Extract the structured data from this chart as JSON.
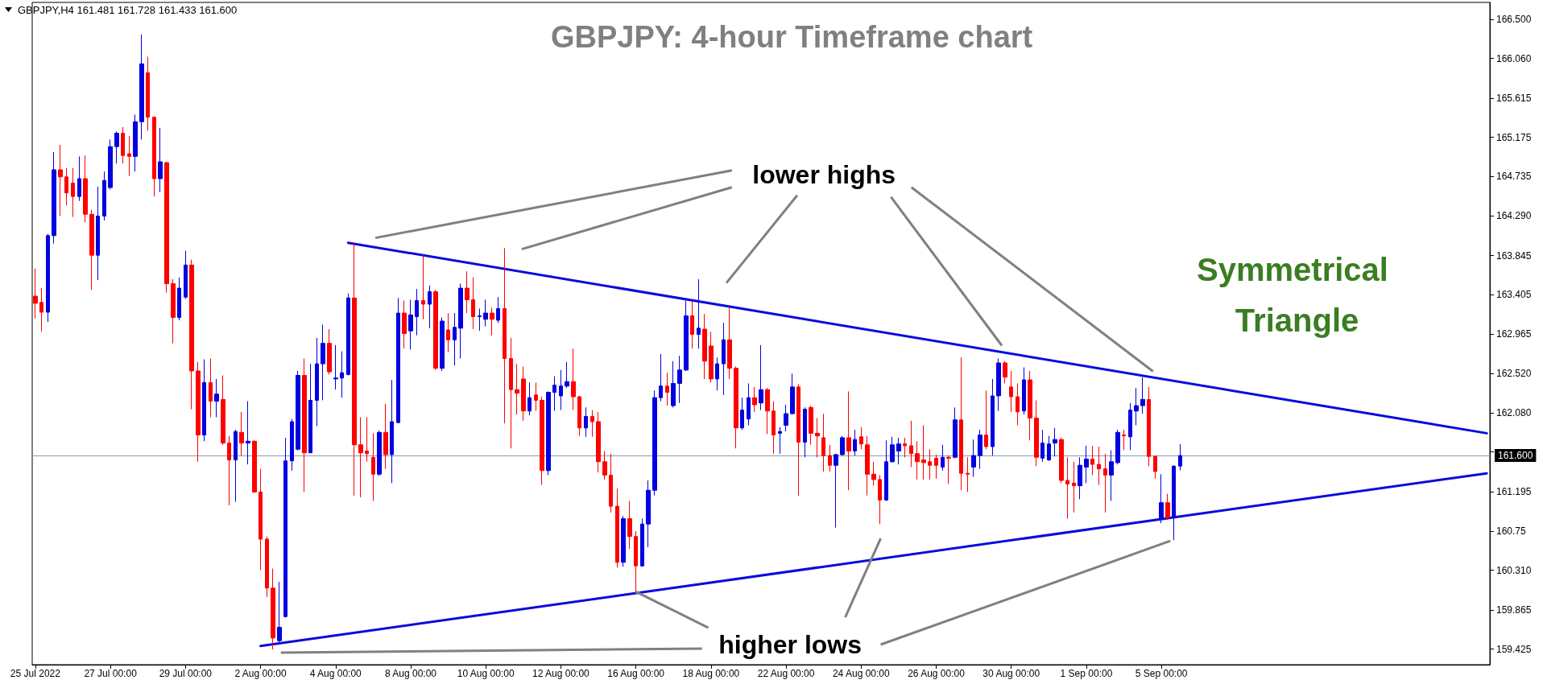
{
  "chart_data": {
    "type": "candlestick",
    "title": "GBPJPY: 4-hour Timeframe chart",
    "annotations": [
      "GBPJPY,H4 161.481 161.728 161.433 161.600",
      "lower highs",
      {
        "text": "higher lows",
        "x": "16 Aug 00:00",
        "y": 160.07
      },
      "Symmetrical Triangle"
    ],
    "categories": [
      "25 Jul 2022",
      null,
      null,
      null,
      null,
      null,
      null,
      null,
      null,
      null,
      null,
      null,
      "27 Jul 00:00",
      null,
      null,
      null,
      null,
      null,
      null,
      null,
      null,
      null,
      null,
      null,
      "29 Jul 00:00",
      null,
      null,
      null,
      null,
      null,
      null,
      null,
      null,
      null,
      null,
      null,
      "2 Aug 00:00",
      null,
      null,
      null,
      null,
      null,
      null,
      null,
      null,
      null,
      null,
      null,
      "4 Aug 00:00",
      null,
      null,
      null,
      null,
      null,
      null,
      null,
      null,
      null,
      null,
      null,
      "8 Aug 00:00",
      null,
      null,
      null,
      null,
      null,
      null,
      null,
      null,
      null,
      null,
      null,
      "10 Aug 00:00",
      null,
      null,
      null,
      null,
      null,
      null,
      null,
      null,
      null,
      null,
      null,
      "12 Aug 00:00",
      null,
      null,
      null,
      null,
      null,
      null,
      null,
      null,
      null,
      null,
      null,
      "16 Aug 00:00",
      null,
      null,
      null,
      null,
      null,
      null,
      null,
      null,
      null,
      null,
      null,
      "18 Aug 00:00",
      null,
      null,
      null,
      null,
      null,
      null,
      null,
      null,
      null,
      null,
      null,
      "22 Aug 00:00",
      null,
      null,
      null,
      null,
      null,
      null,
      null,
      null,
      null,
      null,
      null,
      "24 Aug 00:00",
      null,
      null,
      null,
      null,
      null,
      null,
      null,
      null,
      null,
      null,
      null,
      "26 Aug 00:00",
      null,
      null,
      null,
      null,
      null,
      null,
      null,
      null,
      null,
      null,
      null,
      "30 Aug 00:00",
      null,
      null,
      null,
      null,
      null,
      null,
      null,
      null,
      null,
      null,
      null,
      "1 Sep 00:00",
      null,
      null,
      null,
      null,
      null,
      null,
      null,
      null,
      null,
      null,
      null,
      "5 Sep 00:00",
      null,
      null,
      null,
      null,
      null,
      null,
      null,
      null,
      null,
      null,
      null,
      null,
      null,
      null,
      null,
      null,
      null,
      null,
      null,
      null,
      null,
      null,
      null,
      null,
      null,
      null,
      null,
      null,
      null,
      null,
      null,
      null,
      null,
      null,
      null,
      null,
      null,
      null,
      null,
      null,
      null,
      null,
      null,
      null,
      null,
      null,
      null,
      null,
      null,
      null,
      null,
      null
    ],
    "ylim": [
      159.25,
      166.69
    ],
    "yticks": [
      159.425,
      159.865,
      {
        "value": 160.31,
        "label": "160.310"
      },
      160.75,
      161.195,
      {
        "value": 161.64,
        "label": null
      },
      {
        "value": 162.08,
        "label": "162.080"
      },
      {
        "value": 162.52,
        "label": "162.520"
      },
      162.965,
      163.405,
      163.845,
      {
        "value": 164.29,
        "label": "164.290"
      },
      164.735,
      165.175,
      165.615,
      {
        "value": 166.06,
        "label": "166.060"
      },
      {
        "value": 166.5,
        "label": "166.500"
      }
    ],
    "grid": false,
    "ref_lines": [
      {
        "axis": "y",
        "value": 161.6,
        "label": "161.600",
        "color": "#8a9ab8"
      }
    ],
    "colors": [
      "#ff0000",
      "#ff0000",
      "#0000e0",
      "#0000e0",
      "#ff0000",
      "#ff0000",
      "#ff0000",
      "#0000e0",
      "#ff0000",
      "#ff0000",
      "#0000e0",
      "#0000e0",
      "#0000e0",
      "#0000e0",
      "#ff0000",
      "#ff0000",
      "#0000e0",
      "#0000e0",
      "#ff0000",
      "#ff0000",
      "#0000e0",
      "#ff0000",
      "#ff0000",
      "#0000e0",
      "#0000e0",
      "#ff0000",
      "#ff0000",
      "#0000e0",
      "#ff0000",
      "#0000e0",
      "#ff0000",
      "#ff0000",
      "#0000e0",
      "#ff0000",
      "#0000e0",
      "#ff0000",
      "#ff0000",
      "#ff0000",
      "#ff0000",
      "#0000e0",
      "#0000e0",
      "#0000e0",
      "#0000e0",
      "#ff0000",
      "#0000e0",
      "#0000e0",
      "#0000e0",
      "#ff0000",
      "#0000e0",
      "#0000e0",
      "#0000e0",
      "#ff0000",
      "#ff0000",
      "#ff0000",
      "#ff0000",
      "#0000e0",
      "#ff0000",
      "#0000e0",
      "#0000e0",
      "#ff0000",
      "#0000e0",
      "#0000e0",
      "#ff0000",
      "#0000e0",
      "#ff0000",
      "#0000e0",
      "#ff0000",
      "#0000e0",
      "#0000e0",
      "#ff0000",
      "#ff0000",
      "#0000e0",
      "#0000e0",
      "#ff0000",
      "#0000e0",
      "#ff0000",
      "#ff0000",
      "#ff0000",
      "#ff0000",
      "#0000e0",
      "#ff0000",
      "#ff0000",
      "#0000e0",
      "#0000e0",
      "#0000e0",
      "#0000e0",
      "#ff0000",
      "#ff0000",
      "#0000e0",
      "#ff0000",
      "#ff0000",
      "#ff0000",
      "#ff0000",
      "#ff0000",
      "#0000e0",
      "#ff0000",
      "#ff0000",
      "#0000e0",
      "#0000e0",
      "#0000e0",
      "#0000e0",
      "#ff0000",
      "#0000e0",
      "#0000e0",
      "#0000e0",
      "#ff0000",
      "#0000e0",
      "#ff0000",
      "#ff0000",
      "#0000e0",
      "#0000e0",
      "#ff0000",
      "#ff0000",
      "#0000e0",
      "#0000e0",
      "#ff0000",
      "#0000e0",
      "#ff0000",
      "#ff0000",
      "#0000e0",
      "#0000e0",
      "#0000e0",
      "#ff0000",
      "#0000e0",
      "#ff0000",
      "#ff0000",
      "#ff0000",
      "#ff0000",
      "#0000e0",
      "#0000e0",
      "#ff0000",
      "#0000e0",
      "#ff0000",
      "#ff0000",
      "#ff0000",
      "#ff0000",
      "#0000e0",
      "#0000e0",
      "#0000e0",
      "#ff0000",
      "#ff0000",
      "#ff0000",
      "#ff0000",
      "#ff0000",
      "#ff0000",
      "#0000e0",
      "#ff0000",
      "#0000e0",
      "#ff0000",
      "#ff0000",
      "#0000e0",
      "#0000e0",
      "#ff0000",
      "#0000e0",
      "#0000e0",
      "#ff0000",
      "#ff0000",
      "#ff0000",
      "#0000e0",
      "#ff0000",
      "#ff0000",
      "#0000e0",
      "#0000e0",
      "#0000e0",
      "#ff0000",
      "#ff0000",
      "#ff0000",
      "#0000e0",
      "#0000e0",
      "#ff0000",
      "#ff0000",
      "#ff0000",
      "#0000e0",
      "#0000e0",
      "#ff0000",
      "#0000e0",
      "#0000e0",
      "#0000e0",
      "#ff0000",
      "#ff0000",
      "#0000e0",
      "#ff0000",
      "#0000e0",
      "#0000e0",
      null,
      null,
      null,
      null,
      null,
      null,
      null,
      null,
      null,
      null,
      null,
      null,
      null,
      null,
      null,
      null,
      null,
      null,
      null,
      null,
      null,
      null,
      null,
      null,
      null,
      null,
      null,
      null,
      null,
      null,
      null,
      null,
      null,
      null,
      null,
      null,
      null,
      null,
      null,
      null,
      null,
      null,
      null,
      null,
      null,
      null,
      null,
      null,
      null
    ],
    "ohlc": [
      [
        163.39,
        163.7,
        163.14,
        163.31
      ],
      [
        163.32,
        163.48,
        162.99,
        163.21
      ],
      [
        163.21,
        164.09,
        163.1,
        164.07
      ],
      [
        164.07,
        165.01,
        163.98,
        164.81
      ],
      [
        164.81,
        165.09,
        164.29,
        164.73
      ],
      [
        164.73,
        164.83,
        164.41,
        164.55
      ],
      [
        164.66,
        164.83,
        164.28,
        164.51
      ],
      [
        164.51,
        164.96,
        164.46,
        164.71
      ],
      [
        164.71,
        164.97,
        164.22,
        164.31
      ],
      [
        164.31,
        164.36,
        163.46,
        163.85
      ],
      [
        163.85,
        164.62,
        163.57,
        164.29
      ],
      [
        164.29,
        164.79,
        164.24,
        164.69
      ],
      [
        164.61,
        165.15,
        164.59,
        165.07
      ],
      [
        165.07,
        165.24,
        164.88,
        165.22
      ],
      [
        165.22,
        165.29,
        164.88,
        164.97
      ],
      [
        164.99,
        165.19,
        164.74,
        164.96
      ],
      [
        164.96,
        165.43,
        164.79,
        165.35
      ],
      [
        165.35,
        166.33,
        165.15,
        166.0
      ],
      [
        165.9,
        166.08,
        165.25,
        165.4
      ],
      [
        165.4,
        165.41,
        164.51,
        164.71
      ],
      [
        164.71,
        165.28,
        164.56,
        164.9
      ],
      [
        164.89,
        164.9,
        163.43,
        163.53
      ],
      [
        163.53,
        163.58,
        162.86,
        163.15
      ],
      [
        163.15,
        163.6,
        163.12,
        163.48
      ],
      [
        163.38,
        163.9,
        163.36,
        163.74
      ],
      [
        163.74,
        163.8,
        162.12,
        162.55
      ],
      [
        162.55,
        162.65,
        161.53,
        161.83
      ],
      [
        161.83,
        162.68,
        161.76,
        162.42
      ],
      [
        162.42,
        162.69,
        162.03,
        162.21
      ],
      [
        162.21,
        162.46,
        162.03,
        162.29
      ],
      [
        162.23,
        162.5,
        161.72,
        161.74
      ],
      [
        161.74,
        161.82,
        161.04,
        161.55
      ],
      [
        161.55,
        161.89,
        161.08,
        161.87
      ],
      [
        161.86,
        162.09,
        161.6,
        161.74
      ],
      [
        161.74,
        162.21,
        161.5,
        161.76
      ],
      [
        161.76,
        161.77,
        161.18,
        161.19
      ],
      [
        161.19,
        161.45,
        160.31,
        160.66
      ],
      [
        160.66,
        160.69,
        160.01,
        160.11
      ],
      [
        160.11,
        160.33,
        159.42,
        159.55
      ],
      [
        159.52,
        160.18,
        159.5,
        159.67
      ],
      [
        159.79,
        161.8,
        159.78,
        161.54
      ],
      [
        161.54,
        162.01,
        161.43,
        161.98
      ],
      [
        161.67,
        162.55,
        161.66,
        162.5
      ],
      [
        162.5,
        162.69,
        161.19,
        161.63
      ],
      [
        161.63,
        162.63,
        161.63,
        162.22
      ],
      [
        162.22,
        162.92,
        161.93,
        162.63
      ],
      [
        162.63,
        163.07,
        162.22,
        162.86
      ],
      [
        162.86,
        163.02,
        162.51,
        162.54
      ],
      [
        162.46,
        162.84,
        162.34,
        162.47
      ],
      [
        162.47,
        162.77,
        162.25,
        162.53
      ],
      [
        162.51,
        163.42,
        162.5,
        163.37
      ],
      [
        163.37,
        163.99,
        161.15,
        161.72
      ],
      [
        161.72,
        162.03,
        161.13,
        161.63
      ],
      [
        161.65,
        162.03,
        161.53,
        161.62
      ],
      [
        161.58,
        161.85,
        161.09,
        161.39
      ],
      [
        161.39,
        161.88,
        161.37,
        161.86
      ],
      [
        161.86,
        162.18,
        161.45,
        161.61
      ],
      [
        161.61,
        162.45,
        161.29,
        161.98
      ],
      [
        161.97,
        163.37,
        161.96,
        163.2
      ],
      [
        163.2,
        163.34,
        162.8,
        162.97
      ],
      [
        163.0,
        163.35,
        162.79,
        163.18
      ],
      [
        163.16,
        163.47,
        162.95,
        163.34
      ],
      [
        163.34,
        163.85,
        163.13,
        163.3
      ],
      [
        163.3,
        163.51,
        163.03,
        163.44
      ],
      [
        163.44,
        163.46,
        162.56,
        162.58
      ],
      [
        162.58,
        163.15,
        162.55,
        163.11
      ],
      [
        163.01,
        163.2,
        162.76,
        162.9
      ],
      [
        162.9,
        163.2,
        162.61,
        163.04
      ],
      [
        163.03,
        163.53,
        162.69,
        163.48
      ],
      [
        163.48,
        163.67,
        163.2,
        163.35
      ],
      [
        163.35,
        163.6,
        163.02,
        163.16
      ],
      [
        163.16,
        163.25,
        163.0,
        163.17
      ],
      [
        163.13,
        163.35,
        163.05,
        163.2
      ],
      [
        163.2,
        163.26,
        162.95,
        163.13
      ],
      [
        163.12,
        163.38,
        163.09,
        163.25
      ],
      [
        163.25,
        163.93,
        161.96,
        162.69
      ],
      [
        162.69,
        162.92,
        161.68,
        162.34
      ],
      [
        162.34,
        162.63,
        162.06,
        162.3
      ],
      [
        162.46,
        162.6,
        161.99,
        162.1
      ],
      [
        162.1,
        162.42,
        162.05,
        162.25
      ],
      [
        162.28,
        162.42,
        162.1,
        162.22
      ],
      [
        162.22,
        162.26,
        161.27,
        161.43
      ],
      [
        161.43,
        162.32,
        161.38,
        162.31
      ],
      [
        162.31,
        162.49,
        162.1,
        162.39
      ],
      [
        162.27,
        162.56,
        162.11,
        162.38
      ],
      [
        162.38,
        162.65,
        162.36,
        162.43
      ],
      [
        162.43,
        162.8,
        162.11,
        162.26
      ],
      [
        162.26,
        162.27,
        161.82,
        161.91
      ],
      [
        161.91,
        162.14,
        161.81,
        162.04
      ],
      [
        162.04,
        162.11,
        161.81,
        161.98
      ],
      [
        161.98,
        162.09,
        161.41,
        161.53
      ],
      [
        161.53,
        161.65,
        161.33,
        161.38
      ],
      [
        161.38,
        161.62,
        160.96,
        161.03
      ],
      [
        161.03,
        161.23,
        160.34,
        160.4
      ],
      [
        160.4,
        160.92,
        160.35,
        160.89
      ],
      [
        160.89,
        161.09,
        160.55,
        160.69
      ],
      [
        160.69,
        160.75,
        160.07,
        160.36
      ],
      [
        160.36,
        160.89,
        160.35,
        160.83
      ],
      [
        160.83,
        161.32,
        160.57,
        161.21
      ],
      [
        161.21,
        162.33,
        161.15,
        162.25
      ],
      [
        162.25,
        162.74,
        162.21,
        162.38
      ],
      [
        162.38,
        162.53,
        162.16,
        162.31
      ],
      [
        162.16,
        162.66,
        162.14,
        162.41
      ],
      [
        162.41,
        162.72,
        162.19,
        162.56
      ],
      [
        162.56,
        163.34,
        162.55,
        163.17
      ],
      [
        163.17,
        163.34,
        162.8,
        162.96
      ],
      [
        162.96,
        163.58,
        162.8,
        163.03
      ],
      [
        163.02,
        163.19,
        162.46,
        162.66
      ],
      [
        162.83,
        162.99,
        162.42,
        162.46
      ],
      [
        162.46,
        162.7,
        162.33,
        162.63
      ],
      [
        162.63,
        163.09,
        162.28,
        162.9
      ],
      [
        162.9,
        163.26,
        162.46,
        162.58
      ],
      [
        162.58,
        162.6,
        161.68,
        161.91
      ],
      [
        161.91,
        162.25,
        161.89,
        162.11
      ],
      [
        162.01,
        162.41,
        161.94,
        162.25
      ],
      [
        162.25,
        162.37,
        162.09,
        162.17
      ],
      [
        162.19,
        162.84,
        162.11,
        162.34
      ],
      [
        162.34,
        162.36,
        161.84,
        162.1
      ],
      [
        162.1,
        162.21,
        161.62,
        161.83
      ],
      [
        161.85,
        161.92,
        161.62,
        161.87
      ],
      [
        161.94,
        162.17,
        161.87,
        162.07
      ],
      [
        162.07,
        162.52,
        162.06,
        162.37
      ],
      [
        162.37,
        162.4,
        161.15,
        161.75
      ],
      [
        161.75,
        162.14,
        161.58,
        162.12
      ],
      [
        162.14,
        162.16,
        161.72,
        161.85
      ],
      [
        161.85,
        162.02,
        161.58,
        161.82
      ],
      [
        161.8,
        162.07,
        161.42,
        161.6
      ],
      [
        161.6,
        161.72,
        161.42,
        161.49
      ],
      [
        161.49,
        161.62,
        160.79,
        161.61
      ],
      [
        161.61,
        161.82,
        161.6,
        161.8
      ],
      [
        161.8,
        162.32,
        161.21,
        161.65
      ],
      [
        161.65,
        161.89,
        161.6,
        161.78
      ],
      [
        161.81,
        161.92,
        161.67,
        161.73
      ],
      [
        161.72,
        161.82,
        161.15,
        161.39
      ],
      [
        161.39,
        161.53,
        161.26,
        161.33
      ],
      [
        161.33,
        161.38,
        160.83,
        161.1
      ],
      [
        161.1,
        161.77,
        161.09,
        161.53
      ],
      [
        161.53,
        161.81,
        161.52,
        161.72
      ],
      [
        161.65,
        161.8,
        161.5,
        161.73
      ],
      [
        161.73,
        161.8,
        161.58,
        161.71
      ],
      [
        161.71,
        161.99,
        161.47,
        161.62
      ],
      [
        161.62,
        161.76,
        161.33,
        161.53
      ],
      [
        161.55,
        161.94,
        161.33,
        161.52
      ],
      [
        161.53,
        161.67,
        161.33,
        161.49
      ],
      [
        161.57,
        161.61,
        161.34,
        161.49
      ],
      [
        161.47,
        161.72,
        161.43,
        161.58
      ],
      [
        161.58,
        161.6,
        161.28,
        161.57
      ],
      [
        161.58,
        162.14,
        161.57,
        162.0
      ],
      [
        162.0,
        162.7,
        161.21,
        161.4
      ],
      [
        161.4,
        161.58,
        161.19,
        161.39
      ],
      [
        161.47,
        161.78,
        161.36,
        161.6
      ],
      [
        161.6,
        161.89,
        161.45,
        161.83
      ],
      [
        161.83,
        162.33,
        161.67,
        161.7
      ],
      [
        161.7,
        162.46,
        161.6,
        162.27
      ],
      [
        162.27,
        162.69,
        162.1,
        162.64
      ],
      [
        162.64,
        162.66,
        162.41,
        162.48
      ],
      [
        162.37,
        162.55,
        162.09,
        162.26
      ],
      [
        162.26,
        162.41,
        161.94,
        162.09
      ],
      [
        162.1,
        162.59,
        162.06,
        162.45
      ],
      [
        162.45,
        162.55,
        161.77,
        162.02
      ],
      [
        162.02,
        162.22,
        161.48,
        161.58
      ],
      [
        161.57,
        161.89,
        161.53,
        161.74
      ],
      [
        161.55,
        161.82,
        161.54,
        161.73
      ],
      [
        161.74,
        161.91,
        161.59,
        161.78
      ],
      [
        161.78,
        161.8,
        161.29,
        161.32
      ],
      [
        161.32,
        161.58,
        160.89,
        161.28
      ],
      [
        161.29,
        161.53,
        160.96,
        161.26
      ],
      [
        161.26,
        161.58,
        161.11,
        161.49
      ],
      [
        161.47,
        161.71,
        161.29,
        161.56
      ],
      [
        161.56,
        161.71,
        161.38,
        161.5
      ],
      [
        161.5,
        161.7,
        161.27,
        161.45
      ],
      [
        161.45,
        161.62,
        160.96,
        161.38
      ],
      [
        161.38,
        161.66,
        161.09,
        161.53
      ],
      [
        161.52,
        161.89,
        161.5,
        161.86
      ],
      [
        161.83,
        161.89,
        161.66,
        161.82
      ],
      [
        161.81,
        162.19,
        161.66,
        162.11
      ],
      [
        162.1,
        162.36,
        161.94,
        162.16
      ],
      [
        162.16,
        162.48,
        162.07,
        162.23
      ],
      [
        162.23,
        162.37,
        161.48,
        161.59
      ],
      [
        161.59,
        161.6,
        161.34,
        161.42
      ],
      [
        160.89,
        161.39,
        160.84,
        161.07
      ],
      [
        161.07,
        161.17,
        160.88,
        160.9
      ],
      [
        160.9,
        161.49,
        160.65,
        161.48
      ],
      [
        161.481,
        161.728,
        161.433,
        161.6
      ],
      null,
      null,
      null,
      null,
      null,
      null,
      null,
      null,
      null,
      null,
      null,
      null,
      null,
      null,
      null,
      null,
      null,
      null,
      null,
      null,
      null,
      null,
      null,
      null,
      null,
      null,
      null,
      null,
      null,
      null,
      null,
      null,
      null,
      null,
      null,
      null,
      null,
      null,
      null,
      null,
      null,
      null,
      null,
      null,
      null,
      null,
      null,
      null,
      null
    ],
    "series": [
      {
        "type": "line",
        "color": "#0a0adc",
        "values": [
          null,
          null,
          null,
          null,
          null,
          null,
          null,
          null,
          null,
          null,
          null,
          null,
          null,
          null,
          null,
          null,
          null,
          null,
          null,
          null,
          null,
          null,
          null,
          null,
          null,
          null,
          null,
          null,
          null,
          null,
          null,
          null,
          null,
          null,
          null,
          null,
          null,
          null,
          null,
          null,
          null,
          null,
          null,
          null,
          null,
          null,
          null,
          null,
          null,
          null,
          163.99,
          null,
          null,
          null,
          null,
          null,
          null,
          null,
          null,
          null,
          null,
          null,
          null,
          null,
          null,
          null,
          null,
          null,
          null,
          null,
          null,
          null,
          null,
          null,
          null,
          null,
          null,
          null,
          null,
          null,
          null,
          null,
          null,
          null,
          null,
          null,
          null,
          null,
          null,
          null,
          null,
          null,
          null,
          null,
          null,
          null,
          null,
          null,
          null,
          null,
          null,
          null,
          null,
          null,
          null,
          null,
          null,
          null,
          null,
          null,
          null,
          null,
          null,
          null,
          null,
          null,
          null,
          null,
          null,
          null,
          null,
          null,
          null,
          null,
          null,
          null,
          null,
          null,
          null,
          null,
          null,
          null,
          null,
          null,
          null,
          null,
          null,
          null,
          null,
          null,
          null,
          null,
          null,
          null,
          null,
          null,
          null,
          null,
          null,
          null,
          null,
          null,
          null,
          null,
          null,
          null,
          null,
          null,
          null,
          null,
          null,
          null,
          null,
          null,
          null,
          null,
          null,
          null,
          null,
          null,
          null,
          null,
          null,
          null,
          null,
          null,
          null,
          null,
          null,
          null,
          null,
          null,
          null,
          null,
          null,
          null,
          null,
          null,
          null,
          null,
          null,
          null,
          null,
          null,
          null,
          null,
          null,
          null,
          null,
          null,
          null,
          null,
          null,
          null,
          null,
          null,
          null,
          null,
          null,
          null,
          null,
          null,
          null,
          null,
          null,
          null,
          null,
          null,
          null,
          null,
          null,
          null,
          null,
          null,
          null,
          null,
          null,
          null,
          null,
          null,
          null,
          null,
          161.85
        ]
      },
      {
        "type": "line",
        "color": "#0a0adc",
        "values": [
          null,
          null,
          null,
          null,
          null,
          null,
          null,
          null,
          null,
          null,
          null,
          null,
          null,
          null,
          null,
          null,
          null,
          null,
          null,
          null,
          null,
          null,
          null,
          null,
          null,
          null,
          null,
          null,
          null,
          null,
          null,
          null,
          null,
          null,
          null,
          null,
          159.46,
          null,
          null,
          null,
          null,
          null,
          null,
          null,
          null,
          null,
          null,
          null,
          null,
          null,
          null,
          null,
          null,
          null,
          null,
          null,
          null,
          null,
          null,
          null,
          null,
          null,
          null,
          null,
          null,
          null,
          null,
          null,
          null,
          null,
          null,
          null,
          null,
          null,
          null,
          null,
          null,
          null,
          null,
          null,
          null,
          null,
          null,
          null,
          null,
          null,
          null,
          null,
          null,
          null,
          null,
          null,
          null,
          null,
          null,
          null,
          null,
          null,
          null,
          null,
          null,
          null,
          null,
          null,
          null,
          null,
          null,
          null,
          null,
          null,
          null,
          null,
          null,
          null,
          null,
          null,
          null,
          null,
          null,
          null,
          null,
          null,
          null,
          null,
          null,
          null,
          null,
          null,
          null,
          null,
          null,
          null,
          null,
          null,
          null,
          null,
          null,
          null,
          null,
          null,
          null,
          null,
          null,
          null,
          null,
          null,
          null,
          null,
          null,
          null,
          null,
          null,
          null,
          null,
          null,
          null,
          null,
          null,
          null,
          null,
          null,
          null,
          null,
          null,
          null,
          null,
          null,
          null,
          null,
          null,
          null,
          null,
          null,
          null,
          null,
          null,
          null,
          null,
          null,
          null,
          null,
          null,
          null,
          null,
          null,
          null,
          null,
          null,
          null,
          null,
          null,
          null,
          null,
          null,
          null,
          null,
          null,
          null,
          null,
          null,
          null,
          null,
          null,
          null,
          null,
          null,
          null,
          null,
          null,
          null,
          null,
          null,
          null,
          null,
          null,
          null,
          null,
          null,
          null,
          null,
          null,
          null,
          null,
          null,
          null,
          null,
          null,
          null,
          null,
          null,
          null,
          null,
          161.4
        ]
      }
    ]
  }
}
